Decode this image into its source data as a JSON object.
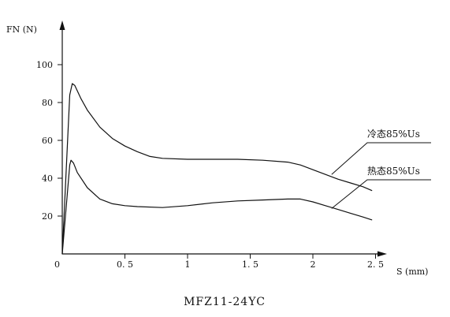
{
  "chart_data": {
    "type": "line",
    "title": "MFZ11-24YC",
    "xlabel": "S (mm)",
    "ylabel": "FN (N)",
    "origin_label": "0",
    "xlim": [
      0,
      2.6
    ],
    "ylim": [
      0,
      118
    ],
    "xticks": [
      {
        "value": 0.5,
        "label": "0. 5"
      },
      {
        "value": 1,
        "label": "1"
      },
      {
        "value": 1.5,
        "label": "1. 5"
      },
      {
        "value": 2,
        "label": "2"
      },
      {
        "value": 2.5,
        "label": "2. 5"
      }
    ],
    "yticks": [
      {
        "value": 20,
        "label": "20"
      },
      {
        "value": 40,
        "label": "40"
      },
      {
        "value": 60,
        "label": "60"
      },
      {
        "value": 80,
        "label": "80"
      },
      {
        "value": 100,
        "label": "100"
      }
    ],
    "grid": false,
    "series": [
      {
        "name": "冷态85%Us",
        "color": "#111111",
        "label_anchor": [
          2.15,
          42
        ],
        "points": [
          [
            0,
            0
          ],
          [
            0.06,
            84
          ],
          [
            0.08,
            90
          ],
          [
            0.1,
            89
          ],
          [
            0.15,
            82
          ],
          [
            0.2,
            76
          ],
          [
            0.3,
            67
          ],
          [
            0.4,
            61
          ],
          [
            0.5,
            57
          ],
          [
            0.6,
            54
          ],
          [
            0.7,
            51.5
          ],
          [
            0.8,
            50.5
          ],
          [
            1,
            50
          ],
          [
            1.2,
            50
          ],
          [
            1.4,
            50
          ],
          [
            1.6,
            49.5
          ],
          [
            1.8,
            48.5
          ],
          [
            1.9,
            47
          ],
          [
            2,
            44.5
          ],
          [
            2.1,
            42
          ],
          [
            2.2,
            39.5
          ],
          [
            2.3,
            37.5
          ],
          [
            2.4,
            35.5
          ],
          [
            2.47,
            33.5
          ]
        ]
      },
      {
        "name": "热态85%Us",
        "color": "#111111",
        "label_anchor": [
          2.15,
          24
        ],
        "points": [
          [
            0,
            0
          ],
          [
            0.06,
            47
          ],
          [
            0.07,
            49.5
          ],
          [
            0.09,
            48
          ],
          [
            0.12,
            43
          ],
          [
            0.2,
            35
          ],
          [
            0.3,
            29
          ],
          [
            0.4,
            26.5
          ],
          [
            0.5,
            25.5
          ],
          [
            0.6,
            25
          ],
          [
            0.8,
            24.5
          ],
          [
            1,
            25.5
          ],
          [
            1.2,
            27
          ],
          [
            1.4,
            28
          ],
          [
            1.6,
            28.5
          ],
          [
            1.8,
            29
          ],
          [
            1.9,
            29
          ],
          [
            2,
            27.5
          ],
          [
            2.1,
            25.5
          ],
          [
            2.2,
            23.5
          ],
          [
            2.3,
            21.5
          ],
          [
            2.4,
            19.5
          ],
          [
            2.47,
            18
          ]
        ]
      }
    ]
  }
}
